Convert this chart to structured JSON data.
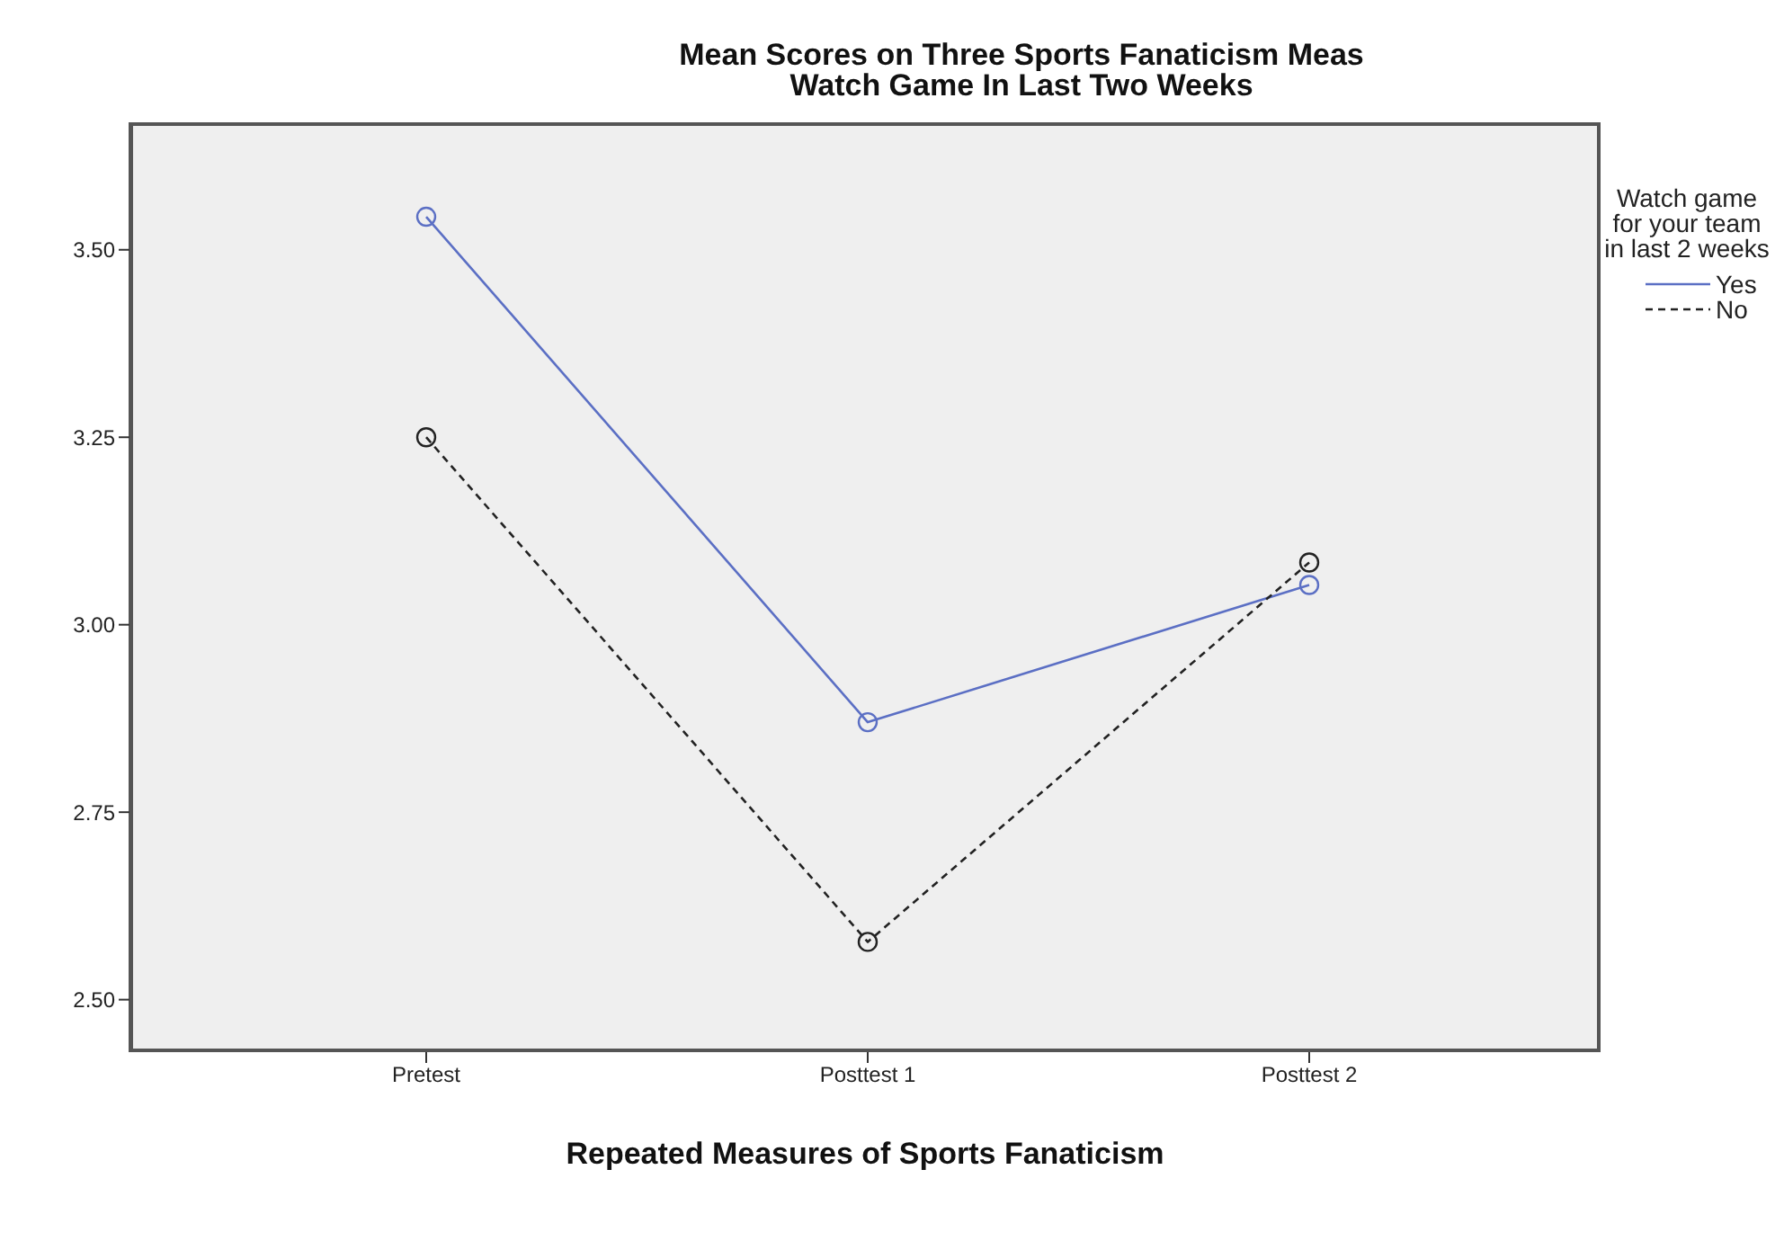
{
  "chart_data": {
    "type": "line",
    "title": "Mean Scores on Three Sports Fanaticism Meas",
    "subtitle": "Watch Game In Last Two Weeks",
    "xlabel": "Repeated Measures of Sports Fanaticism",
    "legend_title": "Watch game for your team in last 2 weeks",
    "categories": [
      "Pretest",
      "Posttest 1",
      "Posttest 2"
    ],
    "series": [
      {
        "name": "Yes",
        "color": "#5b6fc4",
        "line_style": "solid",
        "values": [
          3.544,
          2.87,
          3.053
        ]
      },
      {
        "name": "No",
        "color": "#222222",
        "line_style": "dashed",
        "values": [
          3.25,
          2.577,
          3.083
        ]
      }
    ],
    "ylim": [
      2.43,
      3.67
    ],
    "yticks": [
      {
        "value": 2.5,
        "label": "2.50"
      },
      {
        "value": 2.75,
        "label": "2.75"
      },
      {
        "value": 3,
        "label": "3.00"
      },
      {
        "value": 3.25,
        "label": "3.25"
      },
      {
        "value": 3.5,
        "label": "3.50"
      }
    ],
    "marker": "circle",
    "legend": "right"
  }
}
